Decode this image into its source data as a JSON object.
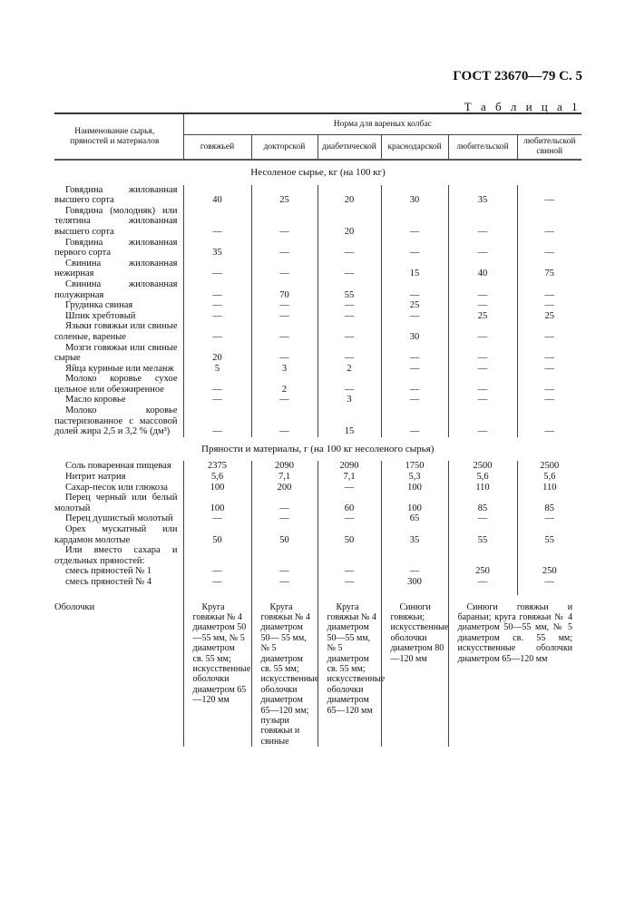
{
  "document": {
    "header": "ГОСТ 23670—79 С. 5",
    "table_label": "Т а б л и ц а   1"
  },
  "table": {
    "name_header": "Наименование сырья, пряностей и материалов",
    "norm_header": "Норма для вареных колбас",
    "columns": [
      "говяжьей",
      "докторской",
      "диабетической",
      "краснодарской",
      "любительской",
      "любительской свиной"
    ],
    "sections": [
      {
        "title": "Несоленое сырье, кг (на 100 кг)",
        "rows": [
          {
            "label": "Говядина жилованная высшего сорта",
            "values": [
              "40",
              "25",
              "20",
              "30",
              "35",
              "—"
            ]
          },
          {
            "label": "Говядина (молодняк) или телятина жилованная высшего сорта",
            "values": [
              "—",
              "—",
              "20",
              "—",
              "—",
              "—"
            ]
          },
          {
            "label": "Говядина жилованная первого сорта",
            "values": [
              "35",
              "—",
              "—",
              "—",
              "—",
              "—"
            ]
          },
          {
            "label": "Свинина жилованная нежирная",
            "values": [
              "—",
              "—",
              "—",
              "15",
              "40",
              "75"
            ]
          },
          {
            "label": "Свинина жилованная полужирная",
            "values": [
              "—",
              "70",
              "55",
              "—",
              "—",
              "—"
            ]
          },
          {
            "label": "Грудинка свиная",
            "values": [
              "—",
              "—",
              "—",
              "25",
              "—",
              "—"
            ]
          },
          {
            "label": "Шпик хребтовый",
            "values": [
              "—",
              "—",
              "—",
              "—",
              "25",
              "25"
            ]
          },
          {
            "label": "Языки говяжьи или свиные соленые, вареные",
            "values": [
              "—",
              "—",
              "—",
              "30",
              "—",
              "—"
            ]
          },
          {
            "label": "Мозги говяжьи или свиные сырые",
            "values": [
              "20",
              "—",
              "—",
              "—",
              "—",
              "—"
            ]
          },
          {
            "label": "Яйца куриные или меланж",
            "values": [
              "5",
              "3",
              "2",
              "—",
              "—",
              "—"
            ]
          },
          {
            "label": "Молоко коровье сухое цельное или обезжиренное",
            "values": [
              "—",
              "2",
              "—",
              "—",
              "—",
              "—"
            ]
          },
          {
            "label": "Масло коровье",
            "values": [
              "—",
              "—",
              "3",
              "—",
              "—",
              "—"
            ]
          },
          {
            "label": "Молоко коровье пастеризованное с массовой долей жира 2,5 и 3,2 % (дм³)",
            "values": [
              "—",
              "—",
              "15",
              "—",
              "—",
              "—"
            ]
          }
        ]
      },
      {
        "title": "Пряности и материалы, г (на 100 кг несоленого сырья)",
        "rows": [
          {
            "label": "Соль поваренная пищевая",
            "values": [
              "2375",
              "2090",
              "2090",
              "1750",
              "2500",
              "2500"
            ]
          },
          {
            "label": "Нитрит натрия",
            "values": [
              "5,6",
              "7,1",
              "7,1",
              "5,3",
              "5,6",
              "5,6"
            ]
          },
          {
            "label": "Сахар-песок или глюкоза",
            "values": [
              "100",
              "200",
              "—",
              "100",
              "110",
              "110"
            ]
          },
          {
            "label": "Перец черный или белый молотый",
            "values": [
              "100",
              "—",
              "60",
              "100",
              "85",
              "85"
            ]
          },
          {
            "label": "Перец душистый молотый",
            "values": [
              "—",
              "—",
              "—",
              "65",
              "—",
              "—"
            ]
          },
          {
            "label": "Орех мускатный или кардамон молотые",
            "values": [
              "50",
              "50",
              "50",
              "35",
              "55",
              "55"
            ]
          },
          {
            "label": "Или вместо сахара и отдельных пряностей:",
            "values": [
              "",
              "",
              "",
              "",
              "",
              ""
            ]
          },
          {
            "label": "смесь пряностей № 1",
            "values": [
              "—",
              "—",
              "—",
              "—",
              "250",
              "250"
            ]
          },
          {
            "label": "смесь пряностей № 4",
            "values": [
              "—",
              "—",
              "—",
              "300",
              "—",
              "—"
            ]
          }
        ]
      }
    ],
    "casings": {
      "label": "Оболочки",
      "values": [
        "Круга говяжьи № 4 диаметром 50—55 мм, № 5 диаметром св. 55 мм; искусственные оболочки диаметром 65—120 мм",
        "Круга говяжьи № 4 диаметром 50— 55 мм, № 5 диаметром св. 55 мм; искусственные оболочки диаметром 65—120 мм; пузыри говяжьи и свиные",
        "Круга говяжьи № 4 диаметром 50—55 мм, № 5 диаметром св. 55 мм; искусственные оболочки диаметром 65—120 мм",
        "Синюги говяжьи; искусственные оболочки диаметром 80—120 мм",
        "Синюги говяжьи и бараньи; круга говяжьи № 4 диаметром 50—55 мм, № 5 диаметром св. 55 мм; искусственные оболочки диаметром 65—120 мм"
      ]
    }
  }
}
